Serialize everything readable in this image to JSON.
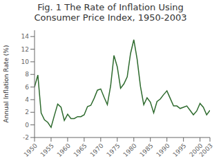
{
  "chart_data": {
    "type": "line",
    "title": "Fig. 1 The Rate of Inflation Using\nConsumer Price Index, 1950-2003",
    "ylabel": "Annual Inflation Rate (%)",
    "color": "#2d6a2d",
    "x": [
      1950,
      1951,
      1952,
      1953,
      1954,
      1955,
      1956,
      1957,
      1958,
      1959,
      1960,
      1961,
      1962,
      1963,
      1964,
      1965,
      1966,
      1967,
      1968,
      1969,
      1970,
      1971,
      1972,
      1973,
      1974,
      1975,
      1976,
      1977,
      1978,
      1979,
      1980,
      1981,
      1982,
      1983,
      1984,
      1985,
      1986,
      1987,
      1988,
      1989,
      1990,
      1991,
      1992,
      1993,
      1994,
      1995,
      1996,
      1997,
      1998,
      1999,
      2000,
      2001,
      2002,
      2003
    ],
    "values": [
      6.0,
      7.9,
      1.9,
      0.8,
      0.4,
      -0.4,
      1.5,
      3.3,
      2.8,
      0.7,
      1.7,
      1.0,
      1.0,
      1.3,
      1.3,
      1.6,
      2.9,
      3.1,
      4.2,
      5.5,
      5.7,
      4.4,
      3.2,
      6.2,
      11.0,
      9.2,
      5.8,
      6.5,
      7.6,
      11.3,
      13.5,
      10.4,
      6.1,
      3.2,
      4.3,
      3.6,
      1.9,
      3.7,
      4.1,
      4.8,
      5.4,
      4.2,
      3.0,
      3.0,
      2.6,
      2.8,
      3.0,
      2.3,
      1.6,
      2.2,
      3.4,
      2.8,
      1.6,
      2.3
    ],
    "xlim": [
      1950,
      2003
    ],
    "xticks": [
      1950,
      1955,
      1960,
      1965,
      1970,
      1975,
      1980,
      1985,
      1990,
      1995,
      2000,
      2003
    ],
    "ylim": [
      -2,
      15
    ],
    "yticks": [
      -2,
      0,
      2,
      4,
      6,
      8,
      10,
      12,
      14
    ],
    "grid": false
  }
}
